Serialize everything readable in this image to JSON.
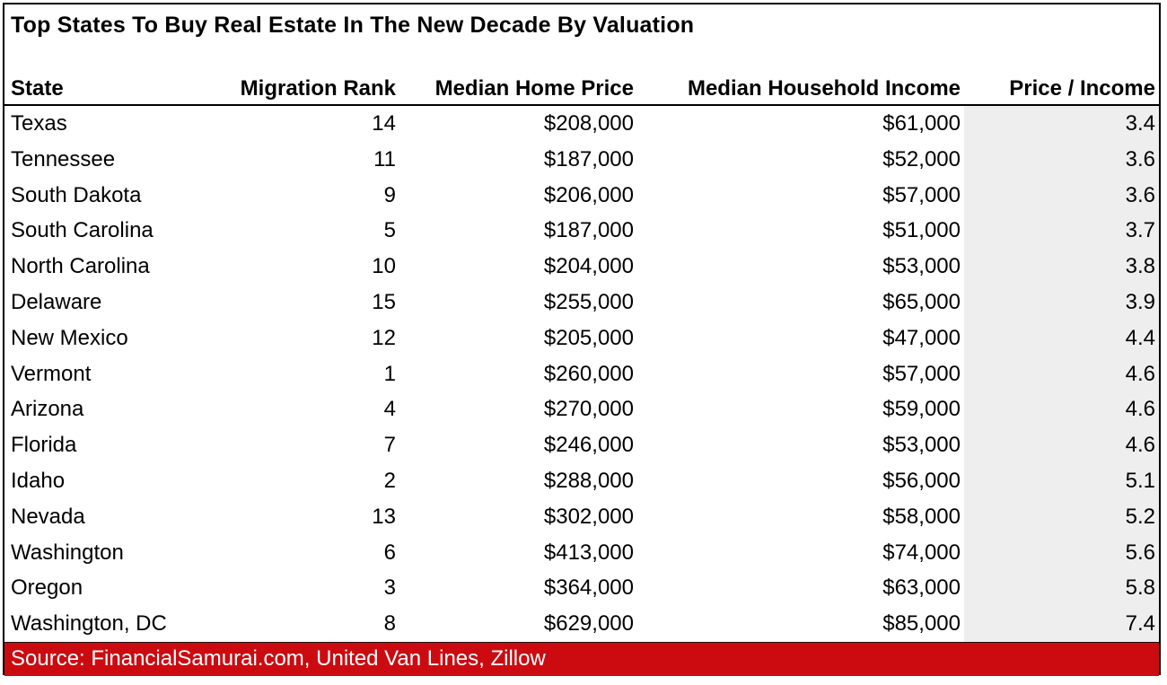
{
  "chart_data": {
    "type": "table",
    "title": "Top States To Buy Real Estate In The New Decade By Valuation",
    "columns": [
      "State",
      "Migration Rank",
      "Median Home Price",
      "Median Household Income",
      "Price / Income"
    ],
    "rows": [
      [
        "Texas",
        "14",
        "$208,000",
        "$61,000",
        "3.4"
      ],
      [
        "Tennessee",
        "11",
        "$187,000",
        "$52,000",
        "3.6"
      ],
      [
        "South Dakota",
        "9",
        "$206,000",
        "$57,000",
        "3.6"
      ],
      [
        "South Carolina",
        "5",
        "$187,000",
        "$51,000",
        "3.7"
      ],
      [
        "North Carolina",
        "10",
        "$204,000",
        "$53,000",
        "3.8"
      ],
      [
        "Delaware",
        "15",
        "$255,000",
        "$65,000",
        "3.9"
      ],
      [
        "New Mexico",
        "12",
        "$205,000",
        "$47,000",
        "4.4"
      ],
      [
        "Vermont",
        "1",
        "$260,000",
        "$57,000",
        "4.6"
      ],
      [
        "Arizona",
        "4",
        "$270,000",
        "$59,000",
        "4.6"
      ],
      [
        "Florida",
        "7",
        "$246,000",
        "$53,000",
        "4.6"
      ],
      [
        "Idaho",
        "2",
        "$288,000",
        "$56,000",
        "5.1"
      ],
      [
        "Nevada",
        "13",
        "$302,000",
        "$58,000",
        "5.2"
      ],
      [
        "Washington",
        "6",
        "$413,000",
        "$74,000",
        "5.6"
      ],
      [
        "Oregon",
        "3",
        "$364,000",
        "$63,000",
        "5.8"
      ],
      [
        "Washington, DC",
        "8",
        "$629,000",
        "$85,000",
        "7.4"
      ]
    ],
    "source": "Source: FinancialSamurai.com, United Van Lines, Zillow",
    "layout": {
      "ratio_column_shaded": true,
      "gridlines": "outer-border-and-header-rule-only"
    }
  },
  "colors": {
    "accent_red": "#CC0B11",
    "ratio_column_bg": "#EEEEEE",
    "border": "#000000",
    "source_text": "#FFFFFF",
    "text": "#000000"
  }
}
